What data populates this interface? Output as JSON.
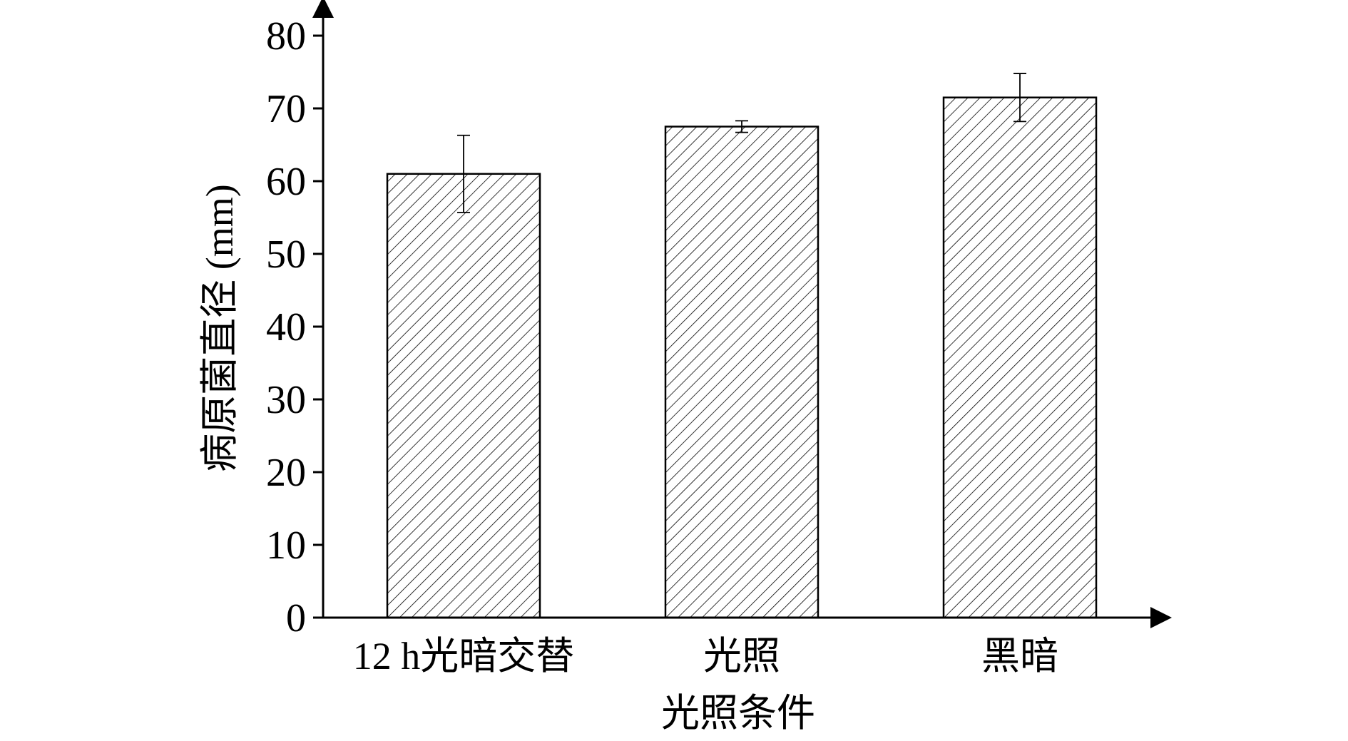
{
  "chart_data": {
    "type": "bar",
    "categories": [
      "12 h光暗交替",
      "光照",
      "黑暗"
    ],
    "values": [
      61.0,
      67.5,
      71.5
    ],
    "errors": [
      5.3,
      0.8,
      3.3
    ],
    "title": "",
    "xlabel": "光照条件",
    "ylabel": "病原菌直径 (mm)",
    "ylim": [
      0,
      80
    ],
    "yticks": [
      0,
      10,
      20,
      30,
      40,
      50,
      60,
      70,
      80
    ],
    "ytick_labels": [
      "0",
      "10",
      "20",
      "30",
      "40",
      "50",
      "60",
      "70",
      "80"
    ],
    "bar_fill": "diagonal-hatch",
    "grid": false,
    "legend": "none"
  }
}
